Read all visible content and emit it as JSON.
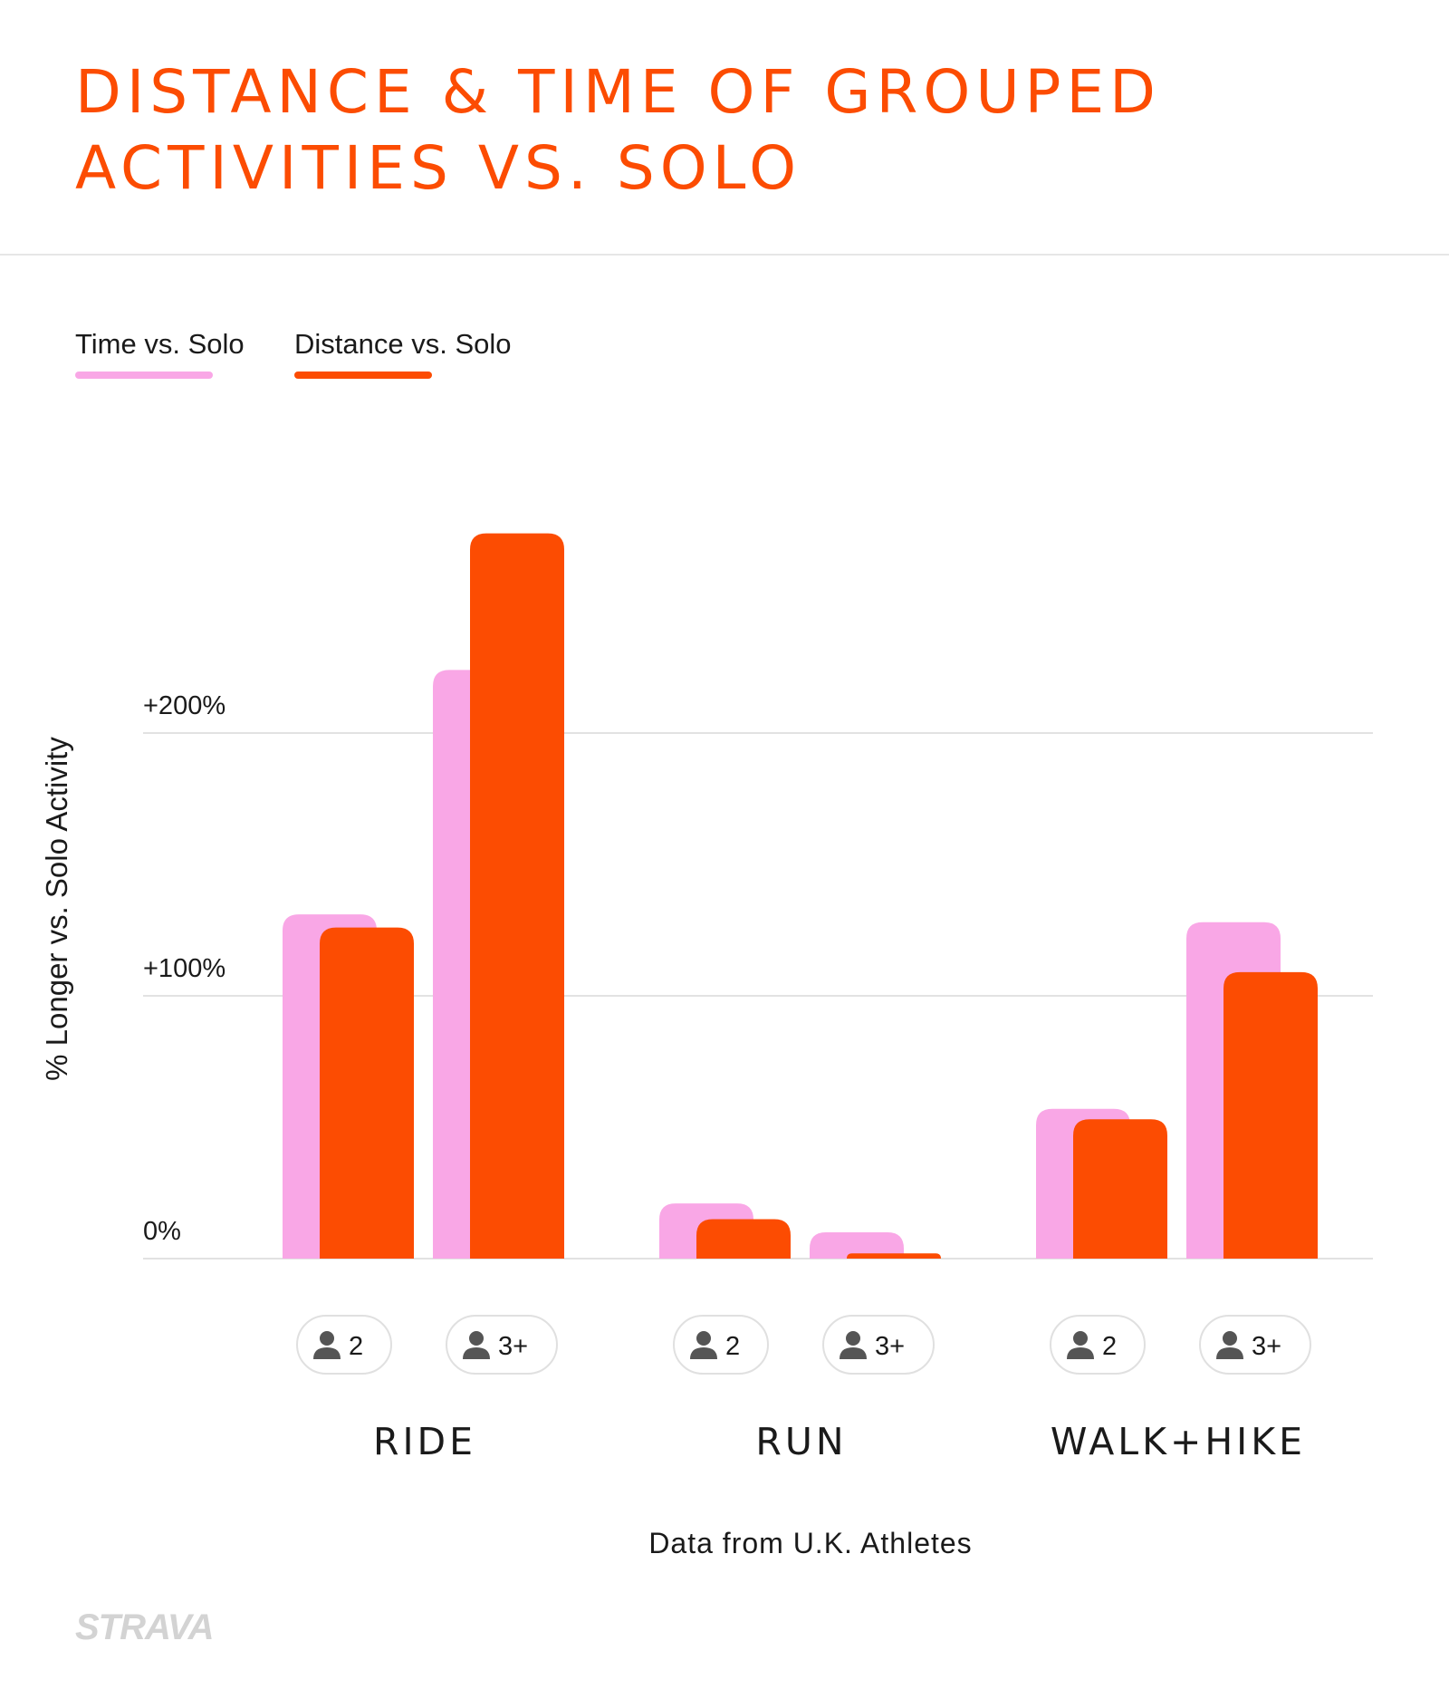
{
  "title": {
    "line1": "DISTANCE & TIME OF GROUPED",
    "line2": "ACTIVITIES VS. SOLO"
  },
  "legend": [
    {
      "label": "Time vs. Solo",
      "color": "#f9a7e6"
    },
    {
      "label": "Distance vs. Solo",
      "color": "#fc4c02"
    }
  ],
  "brand": "STRAVA",
  "chart_data": {
    "type": "bar",
    "ylabel": "% Longer vs. Solo Activity",
    "yticks": [
      {
        "value": 0,
        "label": "0%"
      },
      {
        "value": 100,
        "label": "+100%"
      },
      {
        "value": 200,
        "label": "+200%"
      }
    ],
    "ylim": [
      0,
      200
    ],
    "grid": true,
    "legend_position": "top-left",
    "note": "Data from U.K. Athletes",
    "groups": [
      {
        "name": "RIDE",
        "subgroups": [
          {
            "label": "2",
            "time": 131,
            "distance": 126
          },
          {
            "label": "3+",
            "time": 224,
            "distance": 276
          }
        ]
      },
      {
        "name": "RUN",
        "subgroups": [
          {
            "label": "2",
            "time": 21,
            "distance": 15
          },
          {
            "label": "3+",
            "time": 10,
            "distance": 2
          }
        ]
      },
      {
        "name": "WALK+HIKE",
        "subgroups": [
          {
            "label": "2",
            "time": 57,
            "distance": 53
          },
          {
            "label": "3+",
            "time": 128,
            "distance": 109
          }
        ]
      }
    ]
  }
}
